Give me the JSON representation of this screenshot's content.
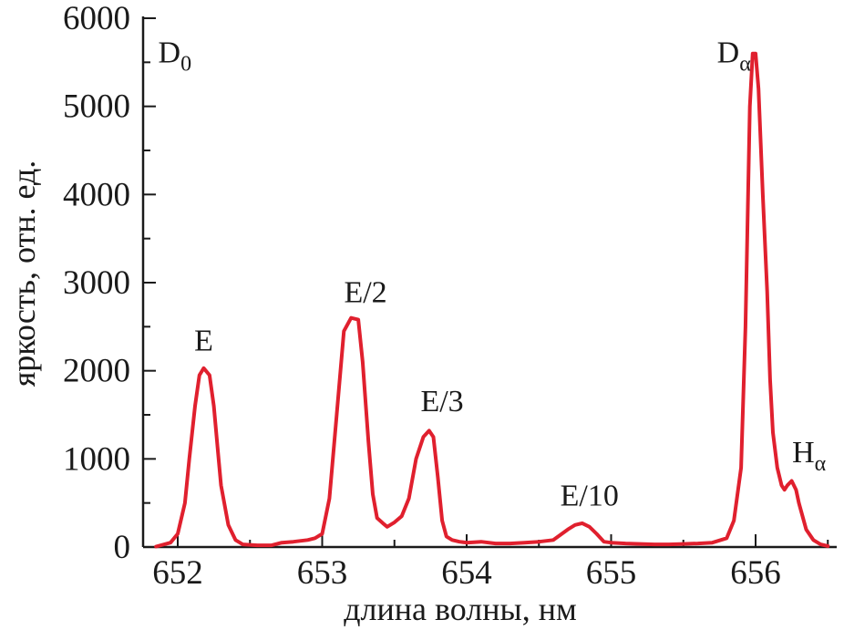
{
  "chart_data": {
    "type": "line",
    "title": "",
    "xlabel": "длина волны, нм",
    "ylabel": "яркость, отн. ед.",
    "xlim": [
      651.8,
      656.55
    ],
    "ylim": [
      0,
      6000
    ],
    "x_ticks": [
      652,
      653,
      654,
      655,
      656
    ],
    "x_tick_labels": [
      "652",
      "653",
      "654",
      "655",
      "656"
    ],
    "y_ticks": [
      0,
      1000,
      2000,
      3000,
      4000,
      5000,
      6000
    ],
    "y_tick_labels": [
      "0",
      "1000",
      "2000",
      "3000",
      "4000",
      "5000",
      "6000"
    ],
    "grid": false,
    "legend": "none",
    "series": [
      {
        "color": "#e0202e",
        "x": [
          651.85,
          651.95,
          652.0,
          652.05,
          652.08,
          652.12,
          652.15,
          652.18,
          652.22,
          652.25,
          652.28,
          652.3,
          652.35,
          652.4,
          652.45,
          652.55,
          652.65,
          652.72,
          652.8,
          652.9,
          652.95,
          653.0,
          653.05,
          653.1,
          653.15,
          653.2,
          653.25,
          653.28,
          653.32,
          653.35,
          653.38,
          653.42,
          653.45,
          653.5,
          653.55,
          653.6,
          653.65,
          653.7,
          653.74,
          653.77,
          653.8,
          653.83,
          653.86,
          653.9,
          653.95,
          654.0,
          654.1,
          654.2,
          654.3,
          654.4,
          654.5,
          654.6,
          654.7,
          654.75,
          654.8,
          654.85,
          654.9,
          654.95,
          655.0,
          655.1,
          655.2,
          655.3,
          655.4,
          655.5,
          655.6,
          655.7,
          655.8,
          655.85,
          655.9,
          655.93,
          655.96,
          655.98,
          656.0,
          656.02,
          656.05,
          656.08,
          656.1,
          656.12,
          656.15,
          656.18,
          656.2,
          656.22,
          656.25,
          656.28,
          656.3,
          656.35,
          656.4,
          656.45,
          656.5
        ],
        "y": [
          5,
          50,
          150,
          500,
          1000,
          1600,
          1950,
          2030,
          1950,
          1600,
          1050,
          700,
          250,
          80,
          30,
          20,
          20,
          50,
          60,
          80,
          100,
          150,
          550,
          1500,
          2450,
          2600,
          2580,
          2100,
          1200,
          600,
          330,
          270,
          230,
          280,
          350,
          550,
          1000,
          1250,
          1320,
          1250,
          800,
          300,
          120,
          80,
          60,
          50,
          60,
          40,
          40,
          50,
          60,
          80,
          200,
          250,
          270,
          230,
          150,
          60,
          50,
          40,
          35,
          30,
          30,
          35,
          40,
          50,
          100,
          300,
          900,
          2500,
          5000,
          5600,
          5600,
          5200,
          4000,
          2900,
          1900,
          1300,
          900,
          700,
          650,
          700,
          750,
          650,
          500,
          200,
          80,
          30,
          10
        ]
      }
    ],
    "annotations": [
      {
        "text": "D",
        "sub": "0",
        "x": 651.98,
        "y": 5500
      },
      {
        "text": "E",
        "sub": "",
        "x": 652.18,
        "y": 2230
      },
      {
        "text": "E/2",
        "sub": "",
        "x": 653.3,
        "y": 2780
      },
      {
        "text": "E/3",
        "sub": "",
        "x": 653.83,
        "y": 1540
      },
      {
        "text": "E/10",
        "sub": "",
        "x": 654.85,
        "y": 470
      },
      {
        "text": "D",
        "sub": "α",
        "x": 655.85,
        "y": 5500
      },
      {
        "text": "H",
        "sub": "α",
        "x": 656.37,
        "y": 960
      }
    ]
  }
}
